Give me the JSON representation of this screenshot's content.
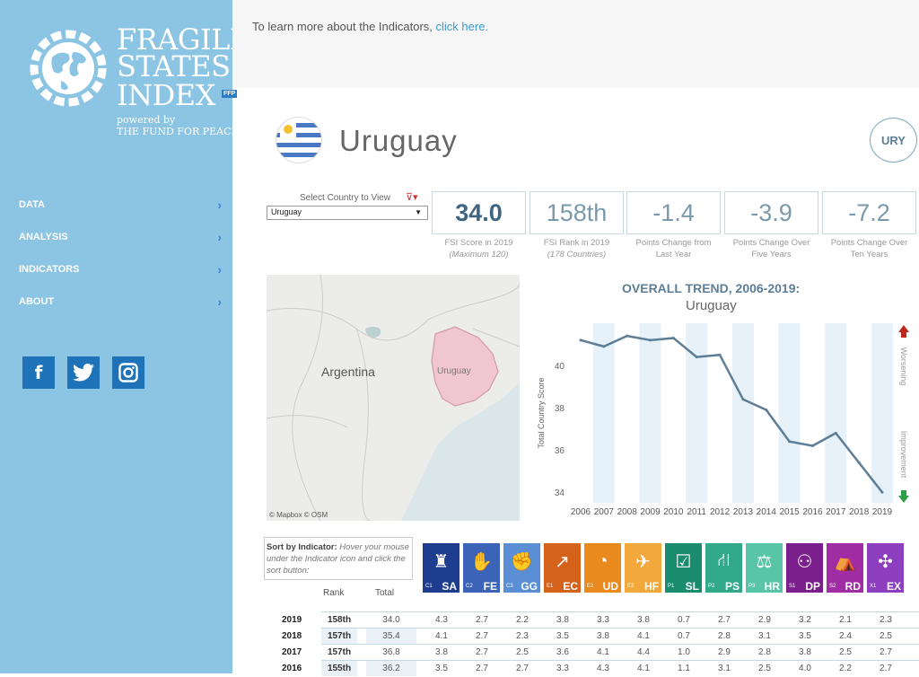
{
  "logo": {
    "line1": "FRAGILE",
    "line2": "STATES",
    "line3": "INDEX",
    "badge": "FFP",
    "powered_by": "powered by",
    "org": "THE FUND FOR PEACE"
  },
  "nav": [
    {
      "label": "DATA",
      "icon": "chevron-right-icon"
    },
    {
      "label": "ANALYSIS",
      "icon": "chevron-right-icon"
    },
    {
      "label": "INDICATORS",
      "icon": "chevron-right-icon"
    },
    {
      "label": "ABOUT",
      "icon": "chevron-right-icon"
    }
  ],
  "social": [
    {
      "icon": "facebook-icon",
      "glyph": "f"
    },
    {
      "icon": "twitter-icon",
      "glyph": "t"
    },
    {
      "icon": "instagram-icon",
      "glyph": "◎"
    }
  ],
  "top": {
    "message": "To learn more about the Indicators,",
    "link": "click here."
  },
  "country": {
    "name": "Uruguay",
    "iso": "URY"
  },
  "selector": {
    "label": "Select Country to View",
    "value": "Uruguay"
  },
  "stats": [
    {
      "value": "34.0",
      "label1": "FSI Score in 2019",
      "label2": "(Maximum 120)"
    },
    {
      "value": "158th",
      "label1": "FSI Rank in 2019",
      "label2": "(178 Countries)"
    },
    {
      "value": "-1.4",
      "label1": "Points Change from",
      "label2": "Last Year"
    },
    {
      "value": "-3.9",
      "label1": "Points Change Over",
      "label2": "Five Years"
    },
    {
      "value": "-7.2",
      "label1": "Points Change Over",
      "label2": "Ten Years"
    }
  ],
  "map": {
    "label_argentina": "Argentina",
    "label_uruguay": "Uruguay",
    "attribution": "© Mapbox  © OSM"
  },
  "chart_data": {
    "type": "line",
    "title": "OVERALL TREND, 2006-2019:",
    "subtitle": "Uruguay",
    "ylabel": "Total Country Score",
    "x": [
      "2006",
      "2007",
      "2008",
      "2009",
      "2010",
      "2011",
      "2012",
      "2013",
      "2014",
      "2015",
      "2016",
      "2017",
      "2018",
      "2019"
    ],
    "values": [
      41.2,
      40.9,
      41.4,
      41.2,
      41.3,
      40.4,
      40.5,
      38.4,
      37.9,
      36.4,
      36.2,
      36.8,
      35.4,
      34.0
    ],
    "ylim": [
      33.5,
      42
    ],
    "yticks": [
      34,
      36,
      38,
      40
    ],
    "legend_top": "Worsening",
    "legend_bottom": "Improvement",
    "colors": {
      "line": "#5d7e96",
      "band": "#e6f1f9",
      "up": "#c0281e",
      "down": "#2e9e44"
    }
  },
  "sort_box": {
    "bold": "Sort by Indicator:",
    "text": " Hover your mouse under the Indicator icon and click the sort button:"
  },
  "indicators": [
    {
      "sub": "C1",
      "code": "SA",
      "color": "#1f3d8f",
      "glyph": "♜"
    },
    {
      "sub": "C2",
      "code": "FE",
      "color": "#3b63b8",
      "glyph": "✋"
    },
    {
      "sub": "C3",
      "code": "GG",
      "color": "#5a8fd6",
      "glyph": "✊"
    },
    {
      "sub": "E1",
      "code": "EC",
      "color": "#d4621b",
      "glyph": "↗"
    },
    {
      "sub": "E2",
      "code": "UD",
      "color": "#e88a1e",
      "glyph": "◔"
    },
    {
      "sub": "E3",
      "code": "HF",
      "color": "#f3a83c",
      "glyph": "✈"
    },
    {
      "sub": "P1",
      "code": "SL",
      "color": "#1a8c6e",
      "glyph": "☑"
    },
    {
      "sub": "P2",
      "code": "PS",
      "color": "#32a98a",
      "glyph": "⛙"
    },
    {
      "sub": "P3",
      "code": "HR",
      "color": "#58c6a6",
      "glyph": "⚖"
    },
    {
      "sub": "S1",
      "code": "DP",
      "color": "#7b1f8c",
      "glyph": "⚇"
    },
    {
      "sub": "S2",
      "code": "RD",
      "color": "#a12da4",
      "glyph": "⛺"
    },
    {
      "sub": "X1",
      "code": "EX",
      "color": "#8e3fc0",
      "glyph": "✣"
    }
  ],
  "table": {
    "headers": {
      "rank": "Rank",
      "total": "Total"
    },
    "rows": [
      {
        "year": "2019",
        "rank": "158th",
        "total": "34.0",
        "vals": [
          "4.3",
          "2.7",
          "2.2",
          "3.8",
          "3.3",
          "3.8",
          "0.7",
          "2.7",
          "2.9",
          "3.2",
          "2.1",
          "2.3"
        ]
      },
      {
        "year": "2018",
        "rank": "157th",
        "total": "35.4",
        "vals": [
          "4.1",
          "2.7",
          "2.3",
          "3.5",
          "3.8",
          "4.1",
          "0.7",
          "2.8",
          "3.1",
          "3.5",
          "2.4",
          "2.5"
        ]
      },
      {
        "year": "2017",
        "rank": "157th",
        "total": "36.8",
        "vals": [
          "3.8",
          "2.7",
          "2.5",
          "3.6",
          "4.1",
          "4.4",
          "1.0",
          "2.9",
          "2.8",
          "3.8",
          "2.5",
          "2.7"
        ]
      },
      {
        "year": "2016",
        "rank": "155th",
        "total": "36.2",
        "vals": [
          "3.5",
          "2.7",
          "2.7",
          "3.3",
          "4.3",
          "4.1",
          "1.1",
          "3.1",
          "2.5",
          "4.0",
          "2.2",
          "2.7"
        ]
      }
    ]
  }
}
